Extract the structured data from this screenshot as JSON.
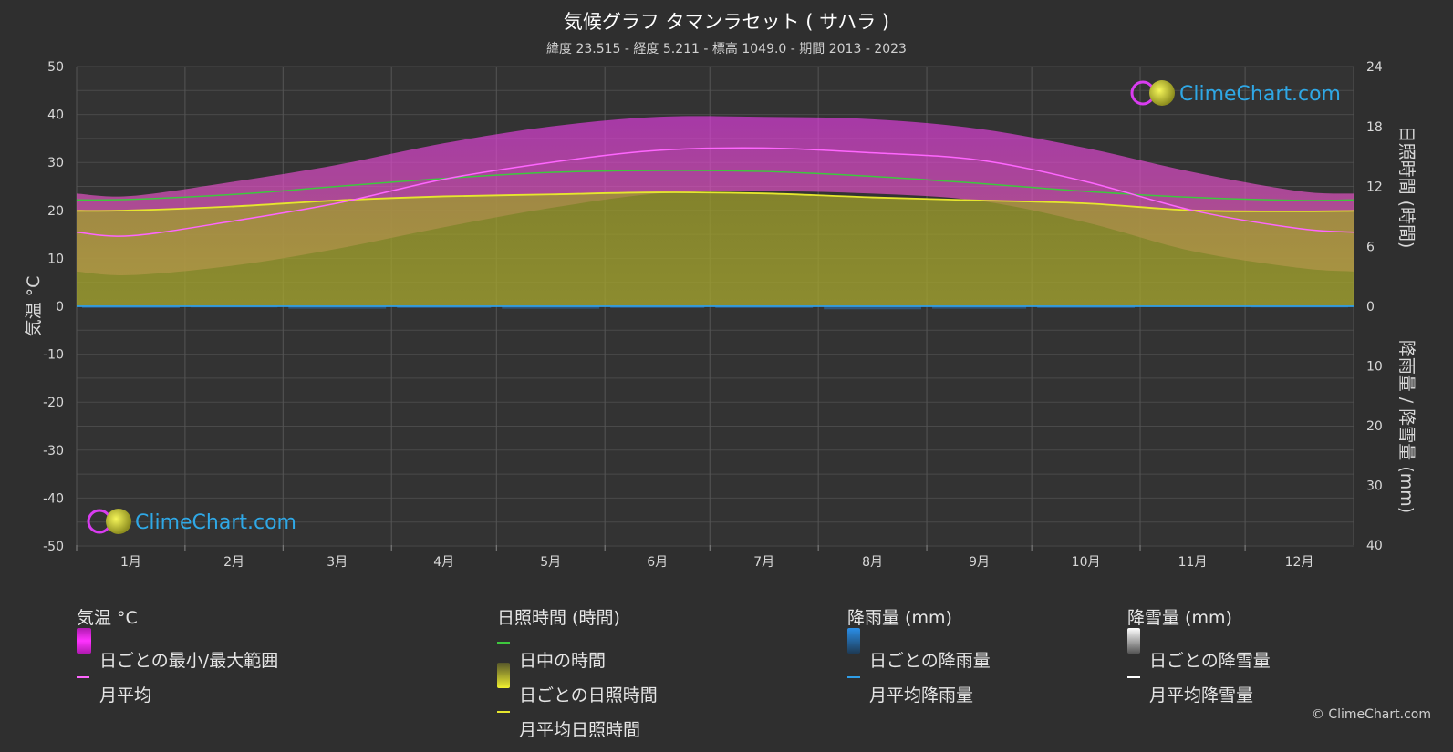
{
  "header": {
    "title": "気候グラフ タマンラセット ( サハラ )",
    "subtitle": "緯度 23.515 - 経度 5.211 - 標高 1049.0 - 期間 2013 - 2023"
  },
  "brand": {
    "logo_text": "ClimeChart.com",
    "copyright": "© ClimeChart.com"
  },
  "chart_data": {
    "type": "area",
    "categories": [
      "1月",
      "2月",
      "3月",
      "4月",
      "5月",
      "6月",
      "7月",
      "8月",
      "9月",
      "10月",
      "11月",
      "12月"
    ],
    "y_left": {
      "label": "気温 °C",
      "range": [
        -50,
        50
      ],
      "ticks": [
        50,
        40,
        30,
        20,
        10,
        0,
        -10,
        -20,
        -30,
        -40,
        -50
      ]
    },
    "y_right_top": {
      "label": "日照時間 (時間)",
      "range": [
        0,
        24
      ],
      "ticks": [
        24,
        18,
        12,
        6,
        0
      ]
    },
    "y_right_bottom": {
      "label": "降雨量 / 降雪量 (mm)",
      "range": [
        0,
        40
      ],
      "ticks": [
        10,
        20,
        30,
        40
      ]
    },
    "grid": true,
    "series": [
      {
        "name": "月平均",
        "unit": "°C",
        "color": "#ff66ff",
        "values": [
          14.7,
          17.8,
          21.5,
          26.5,
          30.0,
          32.5,
          33.0,
          32.0,
          30.5,
          26.0,
          20.0,
          16.2
        ]
      },
      {
        "name": "日ごとの最小/最大範囲",
        "unit": "°C",
        "color": "#e01ee0",
        "min": [
          6.5,
          8.5,
          12.0,
          16.5,
          20.5,
          23.5,
          24.0,
          23.5,
          22.0,
          17.5,
          11.5,
          8.0
        ],
        "max": [
          23.0,
          26.0,
          29.5,
          34.0,
          37.5,
          39.5,
          39.5,
          39.0,
          37.0,
          33.0,
          28.0,
          24.0
        ]
      },
      {
        "name": "日中の時間",
        "unit": "時間",
        "color": "#3ec83e",
        "values": [
          10.7,
          11.2,
          12.0,
          12.8,
          13.4,
          13.6,
          13.5,
          13.0,
          12.3,
          11.5,
          10.9,
          10.6
        ]
      },
      {
        "name": "月平均日照時間",
        "unit": "時間",
        "color": "#e6e62e",
        "values": [
          9.6,
          10.0,
          10.6,
          11.0,
          11.2,
          11.4,
          11.3,
          10.9,
          10.6,
          10.3,
          9.6,
          9.5
        ]
      },
      {
        "name": "月平均降雨量",
        "unit": "mm",
        "color": "#2f9ee8",
        "values": [
          0.3,
          0.2,
          0.4,
          0.3,
          0.4,
          0.3,
          0.3,
          0.5,
          0.4,
          0.3,
          0.1,
          0.2
        ]
      },
      {
        "name": "月平均降雪量",
        "unit": "mm",
        "color": "#ffffff",
        "values": [
          0,
          0,
          0,
          0,
          0,
          0,
          0,
          0,
          0,
          0,
          0,
          0
        ]
      }
    ]
  },
  "legend": {
    "temperature": {
      "heading": "気温 °C",
      "items": [
        {
          "label": "日ごとの最小/最大範囲"
        },
        {
          "label": "月平均"
        }
      ]
    },
    "sunshine": {
      "heading": "日照時間 (時間)",
      "items": [
        {
          "label": "日中の時間"
        },
        {
          "label": "日ごとの日照時間"
        },
        {
          "label": "月平均日照時間"
        }
      ]
    },
    "rain": {
      "heading": "降雨量 (mm)",
      "items": [
        {
          "label": "日ごとの降雨量"
        },
        {
          "label": "月平均降雨量"
        }
      ]
    },
    "snow": {
      "heading": "降雪量 (mm)",
      "items": [
        {
          "label": "日ごとの降雪量"
        },
        {
          "label": "月平均降雪量"
        }
      ]
    }
  }
}
